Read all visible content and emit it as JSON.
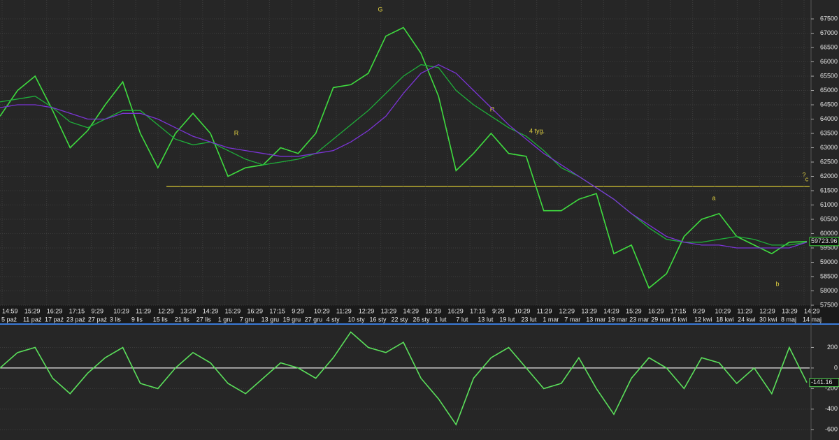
{
  "chart_data": [
    {
      "type": "line",
      "series": [
        {
          "name": "close",
          "color": "#3fdc3f",
          "values": [
            64100,
            65000,
            65500,
            64300,
            63000,
            63600,
            64500,
            65300,
            63500,
            62300,
            63500,
            64200,
            63500,
            62000,
            62300,
            62400,
            63000,
            62800,
            63500,
            65100,
            65200,
            65600,
            66900,
            67200,
            66300,
            64800,
            62200,
            62800,
            63500,
            62800,
            62700,
            60800,
            60800,
            61200,
            61400,
            59300,
            59600,
            58100,
            58600,
            59900,
            60500,
            60700,
            59900,
            59600,
            59300,
            59700,
            59723.96
          ],
          "value_labels": [
            null,
            null,
            null,
            null,
            null,
            null,
            null,
            null,
            null,
            null,
            null,
            null,
            null,
            null,
            null,
            null,
            null,
            null,
            null,
            null,
            null,
            null,
            null,
            null,
            null,
            null,
            null,
            null,
            null,
            null,
            null,
            null,
            null,
            null,
            null,
            null,
            null,
            null,
            null,
            null,
            null,
            null,
            null,
            null,
            null,
            null,
            "59723.96"
          ]
        },
        {
          "name": "ma-mid",
          "color": "#1fae3a",
          "values": [
            64600,
            64700,
            64800,
            64400,
            63900,
            63700,
            64000,
            64300,
            64300,
            63800,
            63300,
            63100,
            63200,
            62900,
            62600,
            62400,
            62500,
            62600,
            62800,
            63300,
            63800,
            64300,
            64900,
            65500,
            65900,
            65800,
            65000,
            64500,
            64100,
            63700,
            63400,
            62900,
            62300,
            62000,
            61600,
            61200,
            60700,
            60200,
            59800,
            59700,
            59700,
            59800,
            59900,
            59800,
            59600,
            59600,
            59700
          ]
        },
        {
          "name": "ma-long",
          "color": "#7b34d6",
          "values": [
            64400,
            64500,
            64500,
            64400,
            64200,
            64000,
            64000,
            64200,
            64200,
            64000,
            63700,
            63400,
            63200,
            63000,
            62900,
            62800,
            62700,
            62700,
            62800,
            62900,
            63200,
            63600,
            64100,
            64900,
            65600,
            65900,
            65600,
            65000,
            64400,
            63800,
            63300,
            62800,
            62400,
            62000,
            61600,
            61200,
            60700,
            60300,
            59900,
            59700,
            59600,
            59600,
            59500,
            59500,
            59500,
            59500,
            59700
          ]
        }
      ],
      "ylim": [
        57500,
        68160
      ],
      "yticks": [
        57500,
        58000,
        58500,
        59000,
        59500,
        60000,
        60500,
        61000,
        61500,
        62000,
        62500,
        63000,
        63500,
        64000,
        64500,
        65000,
        65500,
        66000,
        66500,
        67000,
        67500
      ],
      "hlines": [
        61650
      ],
      "annotations": [
        "G",
        "R",
        "R",
        "4 tyg.",
        "a",
        "b",
        "c",
        "?"
      ],
      "time_labels": [
        "14:59",
        "15:29",
        "16:29",
        "17:15",
        "9:29",
        "10:29",
        "11:29",
        "12:29",
        "13:29",
        "14:29",
        "15:29",
        "16:29",
        "17:15",
        "9:29",
        "10:29",
        "11:29",
        "12:29",
        "13:29",
        "14:29",
        "15:29",
        "16:29",
        "17:15",
        "9:29",
        "10:29",
        "11:29",
        "12:29",
        "13:29",
        "14:29",
        "15:29",
        "16:29",
        "17:15",
        "9:29",
        "10:29",
        "11:29",
        "12:29",
        "13:29",
        "14:29"
      ],
      "date_labels": [
        "5 paź",
        "11 paź",
        "17 paź",
        "23 paź",
        "27 paź",
        "3 lis",
        "9 lis",
        "15 lis",
        "21 lis",
        "27 lis",
        "1 gru",
        "7 gru",
        "13 gru",
        "19 gru",
        "27 gru",
        "4 sty",
        "10 sty",
        "16 sty",
        "22 sty",
        "26 sty",
        "1 lut",
        "7 lut",
        "13 lut",
        "19 lut",
        "23 lut",
        "1 mar",
        "7 mar",
        "13 mar",
        "19 mar",
        "23 mar",
        "29 mar",
        "6 kwi",
        "12 kwi",
        "18 kwi",
        "24 kwi",
        "30 kwi",
        "8 maj",
        "14 maj"
      ],
      "grid": true
    },
    {
      "type": "line",
      "series": [
        {
          "name": "oscillator",
          "color": "#5be05b",
          "values": [
            0,
            150,
            200,
            -100,
            -250,
            -50,
            100,
            200,
            -150,
            -200,
            0,
            150,
            50,
            -150,
            -250,
            -100,
            50,
            0,
            -100,
            100,
            350,
            200,
            150,
            250,
            -100,
            -300,
            -550,
            -100,
            100,
            200,
            0,
            -200,
            -150,
            100,
            -200,
            -450,
            -100,
            100,
            0,
            -200,
            100,
            50,
            -150,
            0,
            -250,
            200,
            -141.16
          ],
          "value_labels": [
            null,
            null,
            null,
            null,
            null,
            null,
            null,
            null,
            null,
            null,
            null,
            null,
            null,
            null,
            null,
            null,
            null,
            null,
            null,
            null,
            null,
            null,
            null,
            null,
            null,
            null,
            null,
            null,
            null,
            null,
            null,
            null,
            null,
            null,
            null,
            null,
            null,
            null,
            null,
            null,
            null,
            null,
            null,
            null,
            null,
            null,
            "-141.16"
          ]
        }
      ],
      "ylim": [
        -700,
        400
      ],
      "yticks": [
        200,
        0,
        -200,
        -400,
        -600
      ],
      "hlines": [
        0
      ],
      "grid": true
    }
  ]
}
